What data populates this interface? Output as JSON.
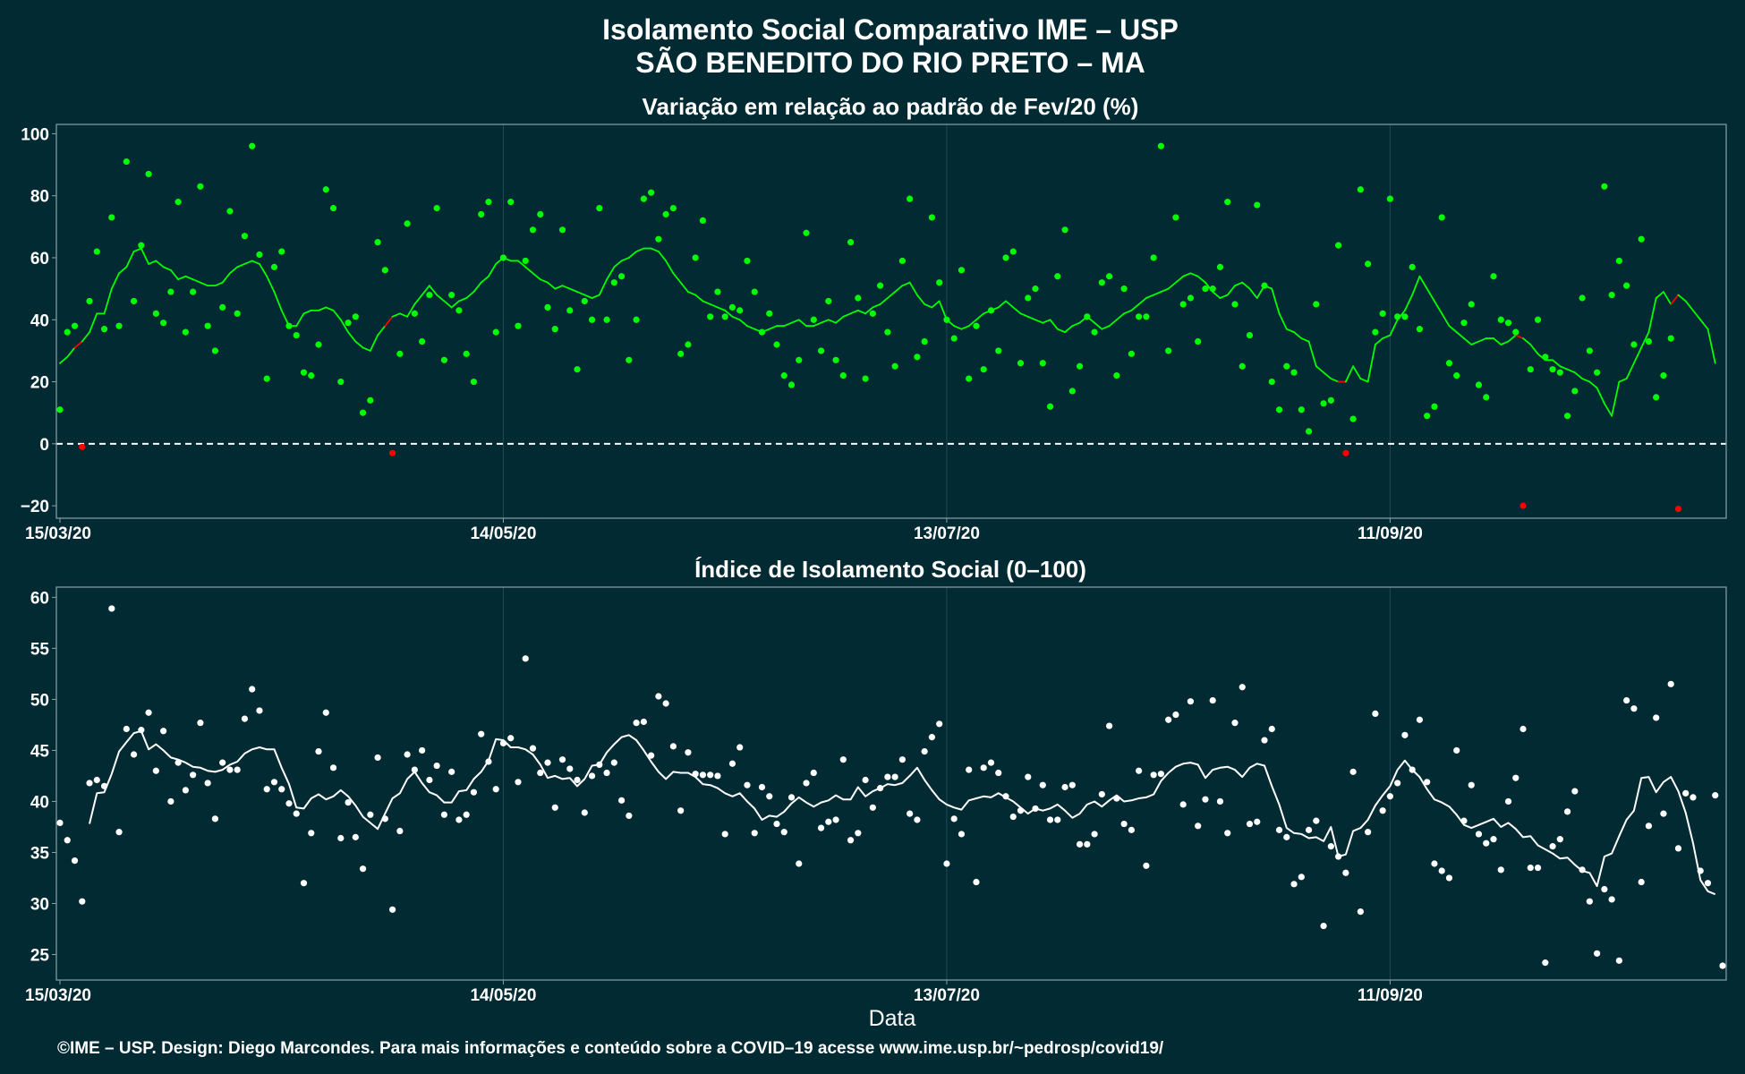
{
  "title_line1": "Isolamento Social Comparativo IME – USP",
  "title_line2": "SÃO BENEDITO DO RIO PRETO – MA",
  "x_axis_label": "Data",
  "caption": "©IME – USP. Design: Diego Marcondes. Para mais informações e conteúdo sobre a COVID–19 acesse www.ime.usp.br/~pedrosp/covid19/",
  "colors": {
    "background": "#022a33",
    "positive": "#00ff00",
    "negative": "#ff0000",
    "index": "#ffffff",
    "grid": "#1f4a54",
    "frame": "#8aa3a8"
  },
  "chart_data": [
    {
      "type": "scatter",
      "title": "Variação em relação ao padrão de Fev/20 (%)",
      "x_start": "15/03/20",
      "x_end": "26/10/20",
      "xticks": [
        "15/03/20",
        "14/05/20",
        "13/07/20",
        "11/09/20"
      ],
      "yticks": [
        -20,
        0,
        20,
        40,
        60,
        80,
        100
      ],
      "ylim": [
        -24,
        103
      ],
      "reference_line": 0,
      "grid": true,
      "legend": "none",
      "series": [
        {
          "kind": "daily points (green ≥ 0, red < 0)",
          "values": [
            11,
            36,
            38,
            -1,
            46,
            62,
            37,
            73,
            38,
            91,
            46,
            64,
            87,
            42,
            39,
            49,
            78,
            36,
            49,
            83,
            38,
            30,
            44,
            75,
            42,
            67,
            96,
            61,
            21,
            57,
            62,
            38,
            35,
            23,
            22,
            32,
            82,
            76,
            20,
            39,
            41,
            10,
            14,
            65,
            56,
            -3,
            29,
            71,
            42,
            33,
            48,
            76,
            27,
            48,
            43,
            29,
            20,
            74,
            78,
            36,
            60,
            78,
            38,
            59,
            69,
            74,
            44,
            37,
            69,
            43,
            24,
            46,
            40,
            76,
            40,
            52,
            54,
            27,
            40,
            79,
            81,
            66,
            74,
            76,
            29,
            32,
            60,
            72,
            41,
            49,
            41,
            44,
            43,
            59,
            49,
            36,
            42,
            32,
            22,
            19,
            27,
            68,
            40,
            30,
            46,
            27,
            22,
            65,
            47,
            21,
            42,
            51,
            36,
            25,
            59,
            79,
            28,
            33,
            73,
            52,
            40,
            34,
            56,
            21,
            38,
            24,
            43,
            30,
            60,
            62,
            26,
            47,
            50,
            26,
            12,
            54,
            69,
            17,
            25,
            41,
            36,
            52,
            54,
            22,
            50,
            29,
            41,
            41,
            60,
            96,
            30,
            73,
            45,
            47,
            33,
            50,
            50,
            57,
            78,
            45,
            25,
            35,
            77,
            51,
            20,
            11,
            25,
            23,
            11,
            4,
            45,
            13,
            14,
            64,
            -3,
            8,
            82,
            58,
            36,
            42,
            79,
            41,
            41,
            57,
            37,
            9,
            12,
            73,
            26,
            22,
            39,
            45,
            19,
            15,
            54,
            40,
            39,
            36,
            -20,
            24,
            40,
            28,
            24,
            23,
            9,
            17,
            47,
            30,
            23,
            83,
            48,
            59,
            51,
            32,
            66,
            33,
            15,
            22,
            34,
            -21
          ]
        },
        {
          "kind": "7-day moving average",
          "values": [
            26,
            28,
            31,
            33,
            36,
            42,
            42,
            50,
            55,
            57,
            62,
            63,
            58,
            59,
            57,
            56,
            53,
            54,
            53,
            52,
            51,
            51,
            52,
            55,
            57,
            58,
            59,
            58,
            54,
            49,
            43,
            38,
            38,
            42,
            43,
            43,
            44,
            43,
            40,
            36,
            33,
            31,
            30,
            35,
            38,
            41,
            42,
            41,
            45,
            48,
            51,
            48,
            46,
            44,
            46,
            47,
            49,
            52,
            54,
            58,
            60,
            59,
            59,
            57,
            55,
            53,
            52,
            50,
            51,
            50,
            49,
            48,
            47,
            48,
            53,
            57,
            59,
            60,
            62,
            63,
            63,
            62,
            59,
            55,
            52,
            49,
            48,
            46,
            45,
            44,
            43,
            41,
            40,
            38,
            37,
            36,
            37,
            38,
            38,
            39,
            40,
            38,
            38,
            39,
            40,
            39,
            41,
            42,
            43,
            42,
            44,
            45,
            47,
            49,
            51,
            52,
            48,
            45,
            44,
            46,
            40,
            38,
            37,
            38,
            40,
            42,
            43,
            44,
            46,
            44,
            42,
            41,
            40,
            39,
            40,
            37,
            36,
            38,
            39,
            41,
            39,
            37,
            38,
            40,
            42,
            43,
            45,
            47,
            48,
            49,
            50,
            52,
            54,
            55,
            54,
            52,
            49,
            47,
            48,
            51,
            52,
            50,
            47,
            51,
            50,
            42,
            37,
            36,
            34,
            33,
            25,
            23,
            21,
            20,
            20,
            25,
            21,
            20,
            32,
            34,
            35,
            40,
            43,
            48,
            54,
            50,
            46,
            42,
            38,
            36,
            34,
            32,
            33,
            34,
            34,
            32,
            33,
            35,
            34,
            32,
            29,
            27,
            27,
            25,
            24,
            23,
            21,
            20,
            18,
            13,
            9,
            20,
            21,
            26,
            31,
            36,
            47,
            49,
            45,
            48,
            46,
            43,
            40,
            37,
            26
          ]
        }
      ]
    },
    {
      "type": "scatter",
      "title": "Índice de Isolamento Social (0–100)",
      "x_start": "15/03/20",
      "x_end": "26/10/20",
      "xticks": [
        "15/03/20",
        "14/05/20",
        "13/07/20",
        "11/09/20"
      ],
      "yticks": [
        25,
        30,
        35,
        40,
        45,
        50,
        55,
        60
      ],
      "ylim": [
        22.5,
        61
      ],
      "grid": true,
      "legend": "none",
      "series": [
        {
          "kind": "daily points",
          "values": [
            37.9,
            36.2,
            34.2,
            30.2,
            41.8,
            42.1,
            41.5,
            58.9,
            37.0,
            47.1,
            44.6,
            47.0,
            48.7,
            43.0,
            46.9,
            40.0,
            43.8,
            41.1,
            42.6,
            47.7,
            41.8,
            38.3,
            43.8,
            43.1,
            43.1,
            48.1,
            51.0,
            48.9,
            41.2,
            41.9,
            41.2,
            39.8,
            38.8,
            32.0,
            36.9,
            44.9,
            48.7,
            43.3,
            36.4,
            39.9,
            36.5,
            33.4,
            38.7,
            44.3,
            38.3,
            29.4,
            37.1,
            44.6,
            43.1,
            45.0,
            42.1,
            43.5,
            38.7,
            42.9,
            38.2,
            38.7,
            40.9,
            46.6,
            43.9,
            41.2,
            45.7,
            46.2,
            41.9,
            54.0,
            45.2,
            42.8,
            43.8,
            39.4,
            44.1,
            43.2,
            42.1,
            38.9,
            42.5,
            43.6,
            42.8,
            43.8,
            40.1,
            38.6,
            47.7,
            47.8,
            44.5,
            50.3,
            49.6,
            45.4,
            39.1,
            44.8,
            42.7,
            42.6,
            42.6,
            42.5,
            36.8,
            43.7,
            45.3,
            41.6,
            36.9,
            41.4,
            40.5,
            37.8,
            37.0,
            40.4,
            33.9,
            41.8,
            42.8,
            37.4,
            38.0,
            38.2,
            44.1,
            36.2,
            36.9,
            42.1,
            39.4,
            41.3,
            42.4,
            42.4,
            44.1,
            38.8,
            38.2,
            44.9,
            46.3,
            47.6,
            33.9,
            38.3,
            36.8,
            43.1,
            32.1,
            43.3,
            43.8,
            42.8,
            40.5,
            38.5,
            39.1,
            42.4,
            39.3,
            41.6,
            38.2,
            38.2,
            41.4,
            41.6,
            35.8,
            35.8,
            36.8,
            40.7,
            47.4,
            40.3,
            37.8,
            37.2,
            43.0,
            33.7,
            42.6,
            42.7,
            48.0,
            48.5,
            39.7,
            49.8,
            37.6,
            40.2,
            49.9,
            40.0,
            36.9,
            47.7,
            51.2,
            37.8,
            38.0,
            46.0,
            47.1,
            37.2,
            36.5,
            31.9,
            32.6,
            37.2,
            38.1,
            27.8,
            35.6,
            34.6,
            33.0,
            42.9,
            29.2,
            37.0,
            48.6,
            39.1,
            40.5,
            41.8,
            46.5,
            43.1,
            48.0,
            41.9,
            33.9,
            33.2,
            32.5,
            45.0,
            38.1,
            41.6,
            36.8,
            35.9,
            36.3,
            33.3,
            40.0,
            42.3,
            47.1,
            33.5,
            33.5,
            24.2,
            35.6,
            36.3,
            39.0,
            41.0,
            33.3,
            30.2,
            25.1,
            31.4,
            30.4,
            24.4,
            49.9,
            49.1,
            32.1,
            37.6,
            48.2,
            38.8,
            51.5,
            35.4,
            40.8,
            40.4,
            33.2,
            32.0,
            40.6,
            23.9
          ]
        },
        {
          "kind": "7-day moving average",
          "values": [
            null,
            null,
            null,
            null,
            37.8,
            40.8,
            40.9,
            42.7,
            44.9,
            45.8,
            46.7,
            46.9,
            45.1,
            45.6,
            45.0,
            44.3,
            44.1,
            43.8,
            43.4,
            43.3,
            43.0,
            42.9,
            43.1,
            43.6,
            43.9,
            44.7,
            45.1,
            45.3,
            45.1,
            45.1,
            43.3,
            41.7,
            39.4,
            39.3,
            40.3,
            40.7,
            40.2,
            40.5,
            41.1,
            40.5,
            39.6,
            38.5,
            37.9,
            37.3,
            38.8,
            40.3,
            40.8,
            42.2,
            42.9,
            41.8,
            40.9,
            40.6,
            39.9,
            39.9,
            41.0,
            41.1,
            42.2,
            42.9,
            44.0,
            46.1,
            46.0,
            45.3,
            45.3,
            45.1,
            44.6,
            43.6,
            42.3,
            42.5,
            42.2,
            42.3,
            41.5,
            42.2,
            43.5,
            43.6,
            44.8,
            45.6,
            46.3,
            46.5,
            46.0,
            45.0,
            43.9,
            42.9,
            42.2,
            42.9,
            42.8,
            42.8,
            42.4,
            41.7,
            41.6,
            41.3,
            40.8,
            40.5,
            40.8,
            40.0,
            39.3,
            38.2,
            38.6,
            38.5,
            39.0,
            39.8,
            40.4,
            39.9,
            39.5,
            39.9,
            40.1,
            40.6,
            40.2,
            40.2,
            41.4,
            40.5,
            41.0,
            41.3,
            41.7,
            41.6,
            41.8,
            42.5,
            43.3,
            42.1,
            41.1,
            40.2,
            39.7,
            39.4,
            39.2,
            40.1,
            40.3,
            40.5,
            40.4,
            40.8,
            40.4,
            40.0,
            39.4,
            38.8,
            39.3,
            39.1,
            39.3,
            39.7,
            39.1,
            38.4,
            38.8,
            39.7,
            40.0,
            39.5,
            40.1,
            40.6,
            40.0,
            40.1,
            40.3,
            40.4,
            40.7,
            42.0,
            42.8,
            43.4,
            43.7,
            43.8,
            43.6,
            42.3,
            43.1,
            43.3,
            43.4,
            43.1,
            42.4,
            43.3,
            43.7,
            43.5,
            41.5,
            39.7,
            37.4,
            36.9,
            36.8,
            36.4,
            36.5,
            36.1,
            37.5,
            34.6,
            34.8,
            37.1,
            37.4,
            38.2,
            39.6,
            40.6,
            41.5,
            43.1,
            44.0,
            43.1,
            42.4,
            41.2,
            40.2,
            39.9,
            39.5,
            38.7,
            37.7,
            37.4,
            37.7,
            38.0,
            38.3,
            37.5,
            37.9,
            37.3,
            36.5,
            36.6,
            35.7,
            35.3,
            34.9,
            34.4,
            34.5,
            33.8,
            33.2,
            33.0,
            31.7,
            34.6,
            34.9,
            36.6,
            38.2,
            39.1,
            42.3,
            42.4,
            40.9,
            41.9,
            42.4,
            41.0,
            38.9,
            35.9,
            32.3,
            31.2,
            30.9
          ]
        }
      ]
    }
  ]
}
